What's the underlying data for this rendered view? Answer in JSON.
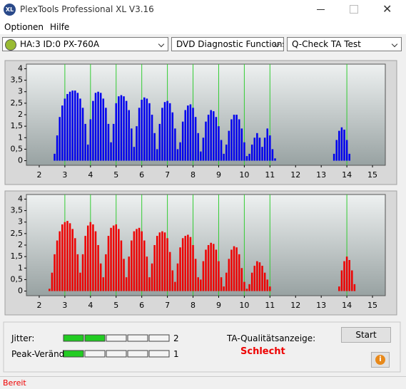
{
  "window": {
    "title": "PlexTools Professional XL V3.16"
  },
  "menu": [
    "Optionen",
    "Hilfe"
  ],
  "toolbar": {
    "drive": "HA:3 ID:0  PX-760A",
    "function": "DVD Diagnostic Functions",
    "test": "Q-Check TA Test"
  },
  "chart_data": [
    {
      "type": "bar",
      "color": "#0000ee",
      "marker_color": "#33cc33",
      "xlim": [
        1.5,
        15.5
      ],
      "ylim": [
        -0.2,
        4.2
      ],
      "xticks": [
        2,
        3,
        4,
        5,
        6,
        7,
        8,
        9,
        10,
        11,
        12,
        13,
        14,
        15
      ],
      "yticks": [
        0,
        {
          "value": 0.5,
          "label": "0,5"
        },
        1,
        {
          "value": 1.5,
          "label": "1,5"
        },
        2,
        {
          "value": 2.5,
          "label": "2,5"
        },
        3,
        {
          "value": 3.5,
          "label": "3,5"
        },
        4
      ],
      "markers": [
        3,
        4,
        5,
        6,
        7,
        8,
        9,
        10,
        11,
        14
      ],
      "x": [
        2.6,
        2.7,
        2.8,
        2.9,
        3.0,
        3.1,
        3.2,
        3.3,
        3.4,
        3.5,
        3.6,
        3.7,
        3.8,
        3.9,
        4.0,
        4.1,
        4.2,
        4.3,
        4.4,
        4.5,
        4.6,
        4.7,
        4.8,
        4.9,
        5.0,
        5.1,
        5.2,
        5.3,
        5.4,
        5.5,
        5.6,
        5.7,
        5.8,
        5.9,
        6.0,
        6.1,
        6.2,
        6.3,
        6.4,
        6.5,
        6.6,
        6.7,
        6.8,
        6.9,
        7.0,
        7.1,
        7.2,
        7.3,
        7.4,
        7.5,
        7.6,
        7.7,
        7.8,
        7.9,
        8.0,
        8.1,
        8.2,
        8.3,
        8.4,
        8.5,
        8.6,
        8.7,
        8.8,
        8.9,
        9.0,
        9.1,
        9.2,
        9.3,
        9.4,
        9.5,
        9.6,
        9.7,
        9.8,
        9.9,
        10.0,
        10.1,
        10.2,
        10.3,
        10.4,
        10.5,
        10.6,
        10.7,
        10.8,
        10.9,
        11.0,
        11.1,
        11.2,
        13.5,
        13.6,
        13.7,
        13.8,
        13.9,
        14.0,
        14.1
      ],
      "values": [
        0.3,
        1.1,
        1.9,
        2.4,
        2.7,
        2.9,
        3.0,
        3.05,
        3.05,
        2.95,
        2.7,
        2.3,
        1.6,
        0.7,
        1.8,
        2.6,
        2.95,
        3.0,
        2.95,
        2.7,
        2.3,
        1.6,
        0.8,
        1.6,
        2.5,
        2.8,
        2.85,
        2.8,
        2.6,
        2.2,
        1.4,
        0.6,
        1.5,
        2.3,
        2.65,
        2.75,
        2.7,
        2.5,
        2.0,
        1.2,
        0.5,
        1.6,
        2.3,
        2.55,
        2.6,
        2.5,
        2.1,
        1.4,
        0.5,
        0.8,
        1.7,
        2.2,
        2.4,
        2.45,
        2.3,
        1.9,
        1.2,
        0.4,
        1.0,
        1.7,
        2.0,
        2.2,
        2.15,
        1.9,
        1.5,
        0.9,
        0.3,
        0.7,
        1.3,
        1.8,
        2.0,
        2.0,
        1.8,
        1.4,
        0.8,
        0.2,
        0.3,
        0.7,
        1.0,
        1.2,
        1.0,
        0.6,
        1.0,
        1.4,
        1.1,
        0.5,
        0.1,
        0.3,
        0.9,
        1.3,
        1.45,
        1.35,
        0.9,
        0.3
      ]
    },
    {
      "type": "bar",
      "color": "#ee0000",
      "marker_color": "#33cc33",
      "xlim": [
        1.5,
        15.5
      ],
      "ylim": [
        -0.2,
        4.2
      ],
      "xticks": [
        2,
        3,
        4,
        5,
        6,
        7,
        8,
        9,
        10,
        11,
        12,
        13,
        14,
        15
      ],
      "yticks": [
        0,
        {
          "value": 0.5,
          "label": "0,5"
        },
        1,
        {
          "value": 1.5,
          "label": "1,5"
        },
        2,
        {
          "value": 2.5,
          "label": "2,5"
        },
        3,
        {
          "value": 3.5,
          "label": "3,5"
        },
        4
      ],
      "markers": [
        3,
        4,
        5,
        6,
        7,
        8,
        9,
        10,
        11,
        14
      ],
      "x": [
        2.4,
        2.5,
        2.6,
        2.7,
        2.8,
        2.9,
        3.0,
        3.1,
        3.2,
        3.3,
        3.4,
        3.5,
        3.6,
        3.7,
        3.8,
        3.9,
        4.0,
        4.1,
        4.2,
        4.3,
        4.4,
        4.5,
        4.6,
        4.7,
        4.8,
        4.9,
        5.0,
        5.1,
        5.2,
        5.3,
        5.4,
        5.5,
        5.6,
        5.7,
        5.8,
        5.9,
        6.0,
        6.1,
        6.2,
        6.3,
        6.4,
        6.5,
        6.6,
        6.7,
        6.8,
        6.9,
        7.0,
        7.1,
        7.2,
        7.3,
        7.4,
        7.5,
        7.6,
        7.7,
        7.8,
        7.9,
        8.0,
        8.1,
        8.2,
        8.3,
        8.4,
        8.5,
        8.6,
        8.7,
        8.8,
        8.9,
        9.0,
        9.1,
        9.2,
        9.3,
        9.4,
        9.5,
        9.6,
        9.7,
        9.8,
        9.9,
        10.0,
        10.1,
        10.2,
        10.3,
        10.4,
        10.5,
        10.6,
        10.7,
        10.8,
        10.9,
        11.0,
        13.7,
        13.8,
        13.9,
        14.0,
        14.1,
        14.2,
        14.3
      ],
      "values": [
        0.1,
        0.8,
        1.6,
        2.2,
        2.6,
        2.9,
        3.0,
        3.05,
        2.95,
        2.7,
        2.3,
        1.6,
        0.8,
        1.6,
        2.4,
        2.85,
        3.0,
        2.9,
        2.6,
        2.0,
        1.2,
        0.6,
        1.6,
        2.4,
        2.75,
        2.85,
        2.9,
        2.7,
        2.2,
        1.4,
        0.6,
        1.5,
        2.2,
        2.6,
        2.7,
        2.75,
        2.6,
        2.2,
        1.5,
        0.6,
        1.2,
        2.0,
        2.4,
        2.55,
        2.6,
        2.55,
        2.3,
        1.7,
        0.9,
        0.4,
        1.2,
        1.9,
        2.3,
        2.4,
        2.45,
        2.35,
        2.0,
        1.4,
        0.6,
        0.5,
        1.3,
        1.8,
        2.0,
        2.1,
        2.05,
        1.8,
        1.3,
        0.6,
        0.2,
        0.8,
        1.4,
        1.8,
        1.95,
        1.9,
        1.6,
        1.0,
        0.4,
        0.1,
        0.3,
        0.8,
        1.1,
        1.3,
        1.25,
        1.1,
        0.8,
        0.5,
        0.2,
        0.2,
        0.9,
        1.3,
        1.5,
        1.35,
        0.9,
        0.3
      ]
    }
  ],
  "indicators": {
    "jitter_label": "Jitter:",
    "jitter": 2,
    "peak_label": "Peak-Veränd",
    "peak": 1,
    "quality_label": "TA-Qualitätsanzeige:",
    "quality": "Schlecht",
    "start": "Start"
  },
  "status": "Bereit"
}
